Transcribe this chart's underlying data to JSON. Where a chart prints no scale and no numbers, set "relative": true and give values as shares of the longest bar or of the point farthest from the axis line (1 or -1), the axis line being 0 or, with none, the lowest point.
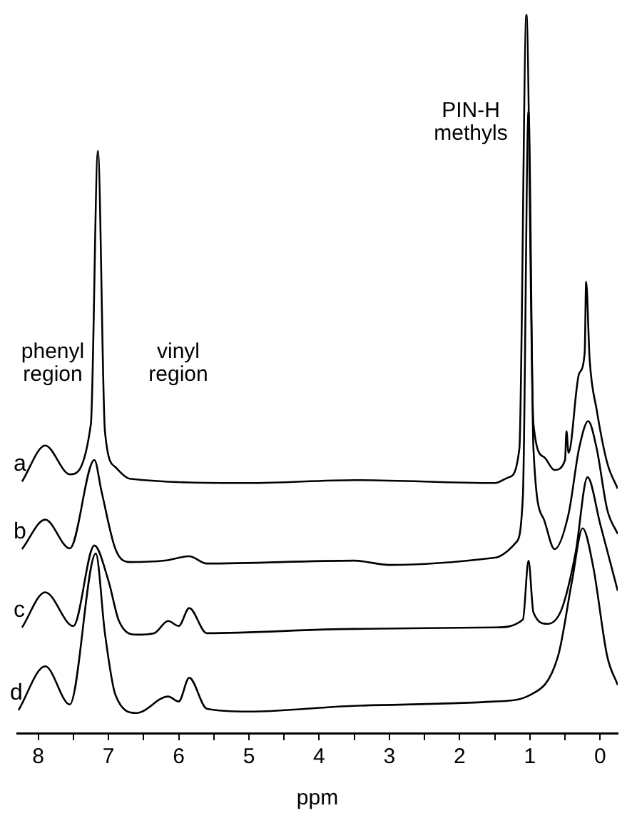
{
  "chart_data": {
    "type": "line",
    "relative": true,
    "xlabel": "ppm",
    "xlim": [
      8.3,
      -0.25
    ],
    "xticks": [
      8,
      {
        "value": 7.5,
        "label": null
      },
      7,
      {
        "value": 6.5,
        "label": null
      },
      6,
      {
        "value": 5.5,
        "label": null
      },
      5,
      {
        "value": 4.5,
        "label": null
      },
      4,
      {
        "value": 3.5,
        "label": null
      },
      3,
      {
        "value": 2.5,
        "label": null
      },
      2,
      {
        "value": 1.5,
        "label": null
      },
      1,
      {
        "value": 0.5,
        "label": null
      },
      0
    ],
    "grid": false,
    "legend": false,
    "marker": "none",
    "line_style": "solid",
    "annotations": [
      "phenyl region",
      "vinyl region",
      "PIN-H methyls"
    ],
    "series": [
      {
        "name": "a",
        "color": "#000000",
        "x": [
          8.23,
          7.9,
          7.55,
          7.25,
          7.15,
          7.05,
          6.9,
          6.7,
          5.0,
          3.5,
          1.5,
          1.3,
          1.15,
          1.05,
          0.95,
          0.8,
          0.65,
          0.5,
          0.48,
          0.45,
          0.3,
          0.22,
          0.2,
          0.15,
          0.05,
          -0.1,
          -0.25
        ],
        "values": [
          0.35,
          0.4,
          0.36,
          0.43,
          0.81,
          0.42,
          0.37,
          0.354,
          0.348,
          0.352,
          0.348,
          0.356,
          0.396,
          1.0,
          0.43,
          0.384,
          0.366,
          0.38,
          0.42,
          0.39,
          0.5,
          0.53,
          0.628,
          0.52,
          0.45,
          0.376,
          0.34
        ]
      },
      {
        "name": "b",
        "color": "#000000",
        "x": [
          8.23,
          7.9,
          7.55,
          7.2,
          7.1,
          6.9,
          6.7,
          6.2,
          5.85,
          5.6,
          3.5,
          3.0,
          1.5,
          1.2,
          1.1,
          1.02,
          0.95,
          0.8,
          0.65,
          0.45,
          0.3,
          0.17,
          0.05,
          -0.1,
          -0.25
        ],
        "values": [
          0.256,
          0.297,
          0.257,
          0.38,
          0.337,
          0.256,
          0.238,
          0.24,
          0.246,
          0.236,
          0.24,
          0.234,
          0.244,
          0.265,
          0.33,
          0.865,
          0.396,
          0.297,
          0.256,
          0.305,
          0.396,
          0.434,
          0.396,
          0.311,
          0.277
        ]
      },
      {
        "name": "c",
        "color": "#000000",
        "x": [
          8.23,
          7.9,
          7.5,
          7.2,
          7.0,
          6.85,
          6.6,
          6.35,
          6.15,
          6.0,
          5.85,
          5.6,
          3.5,
          1.5,
          1.1,
          1.02,
          0.95,
          0.75,
          0.55,
          0.35,
          0.18,
          0.0,
          -0.25
        ],
        "values": [
          0.147,
          0.196,
          0.149,
          0.261,
          0.212,
          0.156,
          0.137,
          0.139,
          0.156,
          0.149,
          0.174,
          0.139,
          0.145,
          0.147,
          0.158,
          0.24,
          0.168,
          0.152,
          0.172,
          0.251,
          0.356,
          0.291,
          0.198
        ]
      },
      {
        "name": "d",
        "color": "#000000",
        "x": [
          8.28,
          7.9,
          7.55,
          7.18,
          7.05,
          6.9,
          6.6,
          6.15,
          6.0,
          5.85,
          5.6,
          5.0,
          3.5,
          1.5,
          1.0,
          0.6,
          0.4,
          0.25,
          0.1,
          -0.1,
          -0.25
        ],
        "values": [
          0.032,
          0.093,
          0.04,
          0.25,
          0.139,
          0.053,
          0.028,
          0.051,
          0.044,
          0.077,
          0.034,
          0.03,
          0.038,
          0.044,
          0.053,
          0.107,
          0.212,
          0.285,
          0.232,
          0.107,
          0.067
        ]
      }
    ]
  }
}
